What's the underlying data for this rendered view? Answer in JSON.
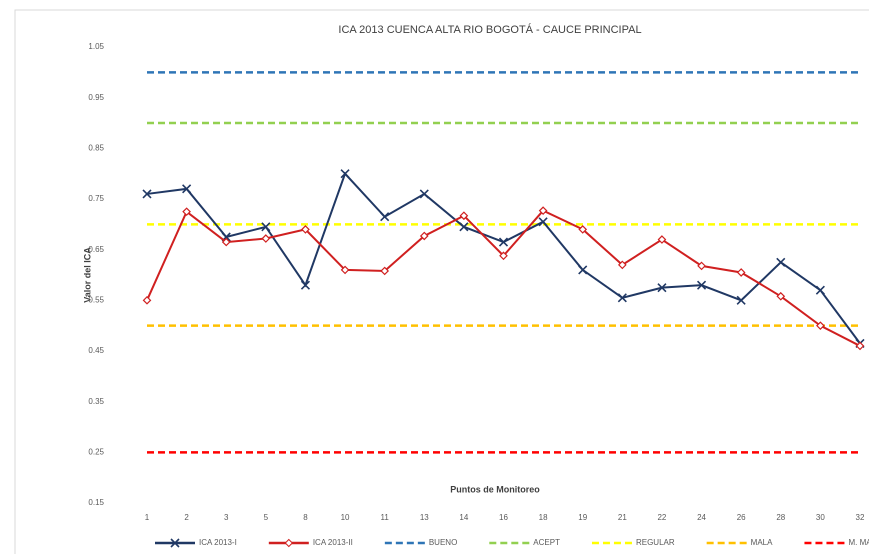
{
  "chart_data": {
    "type": "line",
    "title": "ICA 2013 CUENCA ALTA RIO BOGOTÁ  - CAUCE PRINCIPAL",
    "y_label": "Valor del ICA",
    "x_label": "Puntos de Monitoreo",
    "categories": [
      "1",
      "2",
      "3",
      "5",
      "8",
      "10",
      "11",
      "13",
      "14",
      "16",
      "18",
      "19",
      "21",
      "22",
      "24",
      "26",
      "28",
      "30",
      "32"
    ],
    "ylim": [
      0.15,
      1.05
    ],
    "yticks": [
      0.15,
      0.25,
      0.35,
      0.45,
      0.55,
      0.65,
      0.75,
      0.85,
      0.95,
      1.05
    ],
    "grid": false,
    "legend": "bottom",
    "series": [
      {
        "name": "ICA 2013-I",
        "color": "#203864",
        "marker": "x",
        "values": [
          0.76,
          0.77,
          0.675,
          0.695,
          0.58,
          0.8,
          0.715,
          0.76,
          0.695,
          0.665,
          0.705,
          0.61,
          0.555,
          0.575,
          0.58,
          0.55,
          0.625,
          0.57,
          0.465
        ]
      },
      {
        "name": "ICA 2013-II",
        "color": "#d02020",
        "marker": "diamond",
        "values": [
          0.55,
          0.725,
          0.665,
          0.672,
          0.69,
          0.61,
          0.608,
          0.677,
          0.717,
          0.638,
          0.727,
          0.69,
          0.62,
          0.67,
          0.618,
          0.605,
          0.558,
          0.5,
          0.46
        ]
      },
      {
        "name": "BUENO",
        "color": "#2e75b6",
        "dashed": true,
        "values": [
          1,
          1,
          1,
          1,
          1,
          1,
          1,
          1,
          1,
          1,
          1,
          1,
          1,
          1,
          1,
          1,
          1,
          1,
          1
        ]
      },
      {
        "name": "ACEPT",
        "color": "#92d050",
        "dashed": true,
        "values": [
          0.9,
          0.9,
          0.9,
          0.9,
          0.9,
          0.9,
          0.9,
          0.9,
          0.9,
          0.9,
          0.9,
          0.9,
          0.9,
          0.9,
          0.9,
          0.9,
          0.9,
          0.9,
          0.9
        ]
      },
      {
        "name": "REGULAR",
        "color": "#ffff00",
        "dashed": true,
        "values": [
          0.7,
          0.7,
          0.7,
          0.7,
          0.7,
          0.7,
          0.7,
          0.7,
          0.7,
          0.7,
          0.7,
          0.7,
          0.7,
          0.7,
          0.7,
          0.7,
          0.7,
          0.7,
          0.7
        ]
      },
      {
        "name": "MALA",
        "color": "#ffc000",
        "dashed": true,
        "values": [
          0.5,
          0.5,
          0.5,
          0.5,
          0.5,
          0.5,
          0.5,
          0.5,
          0.5,
          0.5,
          0.5,
          0.5,
          0.5,
          0.5,
          0.5,
          0.5,
          0.5,
          0.5,
          0.5
        ]
      },
      {
        "name": "M. MALA",
        "color": "#ff0000",
        "dashed": true,
        "values": [
          0.25,
          0.25,
          0.25,
          0.25,
          0.25,
          0.25,
          0.25,
          0.25,
          0.25,
          0.25,
          0.25,
          0.25,
          0.25,
          0.25,
          0.25,
          0.25,
          0.25,
          0.25,
          0.25
        ]
      }
    ]
  }
}
